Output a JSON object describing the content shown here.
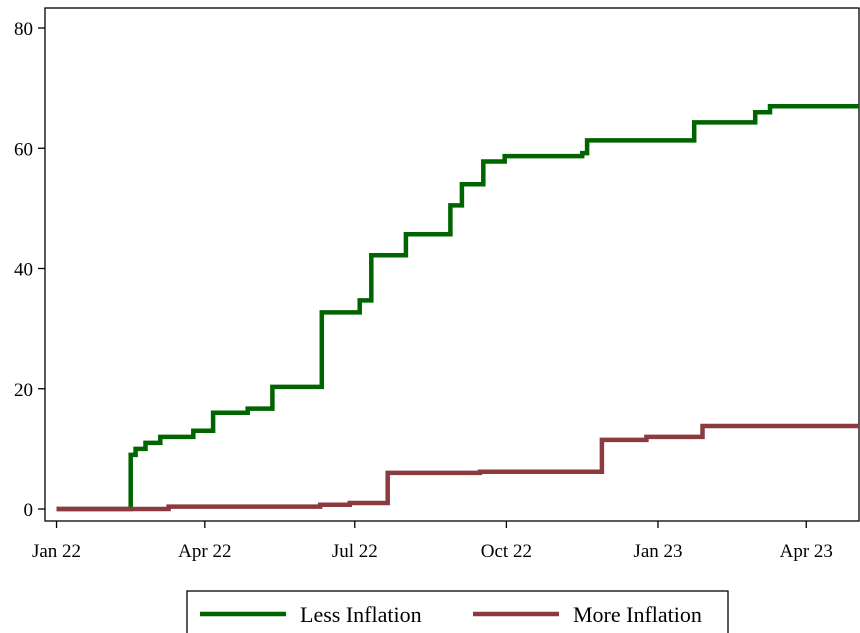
{
  "chart_data": {
    "type": "line",
    "title": "",
    "xlabel": "",
    "ylabel": "",
    "ylim": [
      0,
      80
    ],
    "xlim": [
      "2021-12-25",
      "2023-05-03"
    ],
    "grid": false,
    "legend_position": "bottom",
    "x_ticks": [
      {
        "date": "2022-01-01",
        "label": "Jan 22"
      },
      {
        "date": "2022-04-01",
        "label": "Apr 22"
      },
      {
        "date": "2022-07-01",
        "label": "Jul 22"
      },
      {
        "date": "2022-10-01",
        "label": "Oct 22"
      },
      {
        "date": "2023-01-01",
        "label": "Jan 23"
      },
      {
        "date": "2023-04-01",
        "label": "Apr 23"
      }
    ],
    "y_ticks": [
      {
        "value": 0,
        "label": "0"
      },
      {
        "value": 20,
        "label": "20"
      },
      {
        "value": 40,
        "label": "40"
      },
      {
        "value": 60,
        "label": "60"
      },
      {
        "value": 80,
        "label": "80"
      }
    ],
    "series": [
      {
        "name": "Less Inflation",
        "color": "#006400",
        "step": true,
        "points": [
          {
            "x": "2022-01-01",
            "y": 0
          },
          {
            "x": "2022-02-14",
            "y": 0
          },
          {
            "x": "2022-02-15",
            "y": 9
          },
          {
            "x": "2022-02-18",
            "y": 10
          },
          {
            "x": "2022-02-24",
            "y": 11
          },
          {
            "x": "2022-03-05",
            "y": 12
          },
          {
            "x": "2022-03-25",
            "y": 13
          },
          {
            "x": "2022-04-06",
            "y": 16
          },
          {
            "x": "2022-04-27",
            "y": 16.7
          },
          {
            "x": "2022-05-12",
            "y": 20.3
          },
          {
            "x": "2022-06-11",
            "y": 32.7
          },
          {
            "x": "2022-07-04",
            "y": 34.7
          },
          {
            "x": "2022-07-11",
            "y": 42.2
          },
          {
            "x": "2022-08-01",
            "y": 45.7
          },
          {
            "x": "2022-08-28",
            "y": 50.5
          },
          {
            "x": "2022-09-04",
            "y": 54
          },
          {
            "x": "2022-09-17",
            "y": 57.8
          },
          {
            "x": "2022-09-30",
            "y": 58.7
          },
          {
            "x": "2022-11-16",
            "y": 59.2
          },
          {
            "x": "2022-11-19",
            "y": 61.3
          },
          {
            "x": "2023-01-23",
            "y": 64.3
          },
          {
            "x": "2023-03-01",
            "y": 66
          },
          {
            "x": "2023-03-10",
            "y": 67
          },
          {
            "x": "2023-05-03",
            "y": 67
          }
        ]
      },
      {
        "name": "More Inflation",
        "color": "#8b3a3f",
        "step": true,
        "points": [
          {
            "x": "2022-01-01",
            "y": 0
          },
          {
            "x": "2022-03-10",
            "y": 0.4
          },
          {
            "x": "2022-06-10",
            "y": 0.7
          },
          {
            "x": "2022-06-28",
            "y": 1
          },
          {
            "x": "2022-07-21",
            "y": 6
          },
          {
            "x": "2022-09-15",
            "y": 6.2
          },
          {
            "x": "2022-11-28",
            "y": 11.5
          },
          {
            "x": "2022-12-25",
            "y": 12
          },
          {
            "x": "2023-01-28",
            "y": 13.8
          },
          {
            "x": "2023-05-03",
            "y": 13.8
          }
        ]
      }
    ]
  }
}
